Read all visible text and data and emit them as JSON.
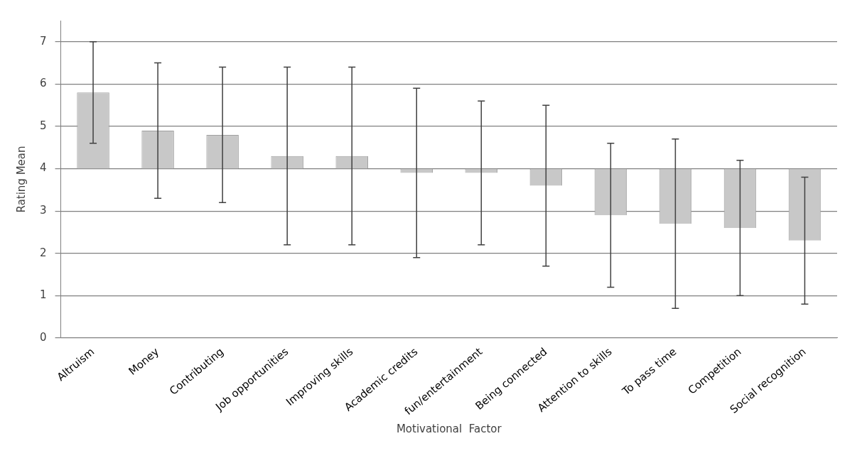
{
  "chart_data": {
    "type": "bar",
    "xlabel": "Motivational  Factor",
    "ylabel": "Rating Mean",
    "categories": [
      "Altruism",
      "Money",
      "Contributing",
      "Job opportunities",
      "Improving skills",
      "Academic credits",
      "fun/entertainment",
      "Being connected",
      "Attention to skills",
      "To pass time",
      "Competition",
      "Social recognition"
    ],
    "base": [
      4,
      4,
      4,
      4,
      4,
      4,
      4,
      4,
      4,
      4,
      4,
      4
    ],
    "values": [
      1.8,
      0.9,
      0.8,
      0.3,
      0.3,
      -0.1,
      -0.1,
      -0.4,
      -1.1,
      -1.3,
      -1.4,
      -1.7
    ],
    "errors": [
      1.2,
      1.6,
      1.6,
      2.1,
      2.1,
      2.0,
      1.7,
      1.9,
      1.7,
      2.0,
      1.6,
      1.5
    ],
    "color": "#c8c8c8",
    "ylim": [
      0,
      7.5
    ],
    "yticks": [
      0,
      1,
      2,
      3,
      4,
      5,
      6,
      7
    ],
    "grid": "y"
  }
}
